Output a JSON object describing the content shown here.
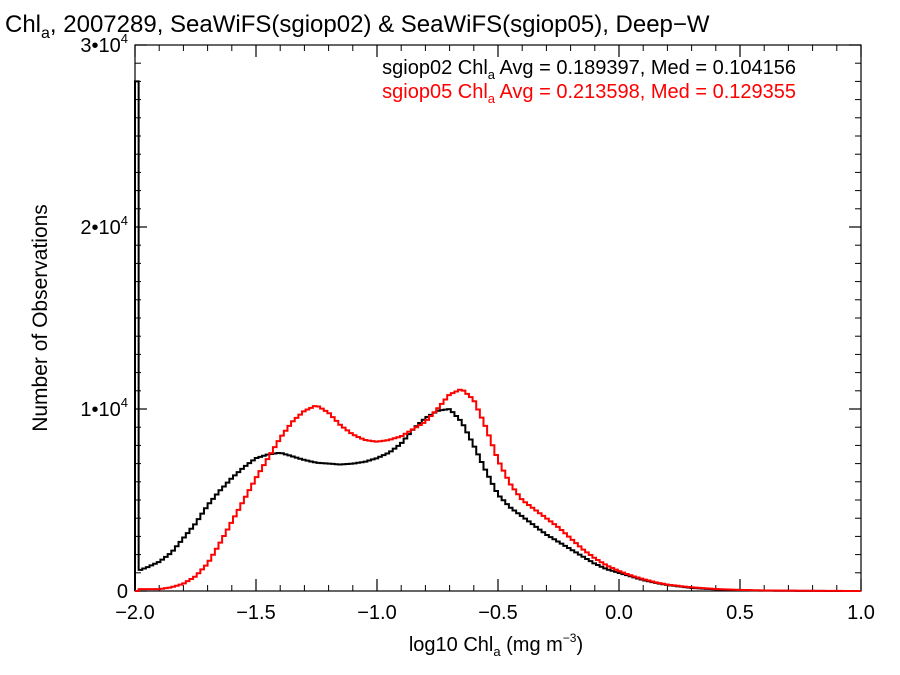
{
  "chart_data": {
    "type": "line",
    "title_parts": {
      "a": "Chl",
      "sub": "a",
      "b": ", 2007289, SeaWiFS(sgiop02) & SeaWiFS(sgiop05), Deep−W"
    },
    "xlabel_parts": {
      "a": "log10 Chl",
      "sub": "a",
      "b": " (mg m",
      "sup": "−3",
      "c": ")"
    },
    "ylabel": "Number of Observations",
    "xlim": [
      -2.0,
      1.0
    ],
    "ylim": [
      0,
      30000
    ],
    "x_ticks": [
      {
        "value": -2.0,
        "label": "−2.0"
      },
      {
        "value": -1.5,
        "label": "−1.5"
      },
      {
        "value": -1.0,
        "label": "−1.0"
      },
      {
        "value": -0.5,
        "label": "−0.5"
      },
      {
        "value": 0.0,
        "label": "0.0"
      },
      {
        "value": 0.5,
        "label": "0.5"
      },
      {
        "value": 1.0,
        "label": "1.0"
      }
    ],
    "y_ticks": [
      {
        "value": 0,
        "label": "0",
        "exp": ""
      },
      {
        "value": 10000,
        "label": "1•10",
        "exp": "4"
      },
      {
        "value": 20000,
        "label": "2•10",
        "exp": "4"
      },
      {
        "value": 30000,
        "label": "3•10",
        "exp": "4"
      }
    ],
    "series": [
      {
        "id": "sgiop02",
        "color": "#000000",
        "legend": {
          "a": "sgiop02 Chl",
          "sub": "a",
          "b": " Avg = 0.189397, Med = 0.104156"
        },
        "x": [
          -2.0,
          -1.99,
          -1.98,
          -1.95,
          -1.9,
          -1.85,
          -1.8,
          -1.75,
          -1.7,
          -1.65,
          -1.6,
          -1.55,
          -1.5,
          -1.45,
          -1.4,
          -1.35,
          -1.3,
          -1.25,
          -1.2,
          -1.15,
          -1.1,
          -1.05,
          -1.0,
          -0.95,
          -0.9,
          -0.85,
          -0.8,
          -0.75,
          -0.7,
          -0.65,
          -0.6,
          -0.55,
          -0.5,
          -0.45,
          -0.4,
          -0.35,
          -0.3,
          -0.25,
          -0.2,
          -0.15,
          -0.1,
          -0.05,
          0.0,
          0.05,
          0.1,
          0.15,
          0.2,
          0.3,
          0.4,
          0.5,
          0.6,
          0.8,
          1.0
        ],
        "y": [
          28000,
          1200,
          1150,
          1300,
          1600,
          2100,
          2900,
          3700,
          4700,
          5500,
          6200,
          6800,
          7300,
          7500,
          7600,
          7400,
          7200,
          7050,
          7000,
          6950,
          7000,
          7100,
          7300,
          7600,
          8100,
          8900,
          9500,
          9900,
          10000,
          9300,
          8000,
          6600,
          5300,
          4600,
          4100,
          3600,
          3100,
          2700,
          2300,
          1900,
          1500,
          1200,
          1000,
          800,
          600,
          450,
          330,
          170,
          90,
          40,
          20,
          5,
          0
        ]
      },
      {
        "id": "sgiop05",
        "color": "#ff0000",
        "legend": {
          "a": "sgiop05 Chl",
          "sub": "a",
          "b": " Avg = 0.213598, Med = 0.129355"
        },
        "x": [
          -2.0,
          -1.9,
          -1.85,
          -1.8,
          -1.75,
          -1.7,
          -1.65,
          -1.6,
          -1.55,
          -1.5,
          -1.45,
          -1.4,
          -1.35,
          -1.3,
          -1.25,
          -1.2,
          -1.15,
          -1.1,
          -1.05,
          -1.0,
          -0.95,
          -0.9,
          -0.85,
          -0.8,
          -0.75,
          -0.7,
          -0.65,
          -0.6,
          -0.55,
          -0.5,
          -0.45,
          -0.4,
          -0.35,
          -0.3,
          -0.25,
          -0.2,
          -0.15,
          -0.1,
          -0.05,
          0.0,
          0.05,
          0.1,
          0.15,
          0.2,
          0.3,
          0.4,
          0.5,
          0.6,
          0.8,
          1.0
        ],
        "y": [
          0,
          100,
          200,
          400,
          800,
          1500,
          2600,
          3800,
          5000,
          6200,
          7300,
          8400,
          9300,
          9900,
          10200,
          9800,
          9100,
          8600,
          8300,
          8200,
          8300,
          8500,
          8900,
          9300,
          10000,
          10800,
          11100,
          10500,
          9000,
          7200,
          5900,
          5000,
          4500,
          4000,
          3500,
          2900,
          2300,
          1800,
          1400,
          1100,
          850,
          650,
          480,
          350,
          200,
          110,
          60,
          30,
          10,
          0
        ]
      }
    ]
  }
}
